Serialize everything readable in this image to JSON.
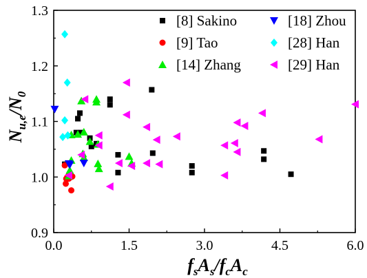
{
  "chart_data": {
    "type": "scatter",
    "xlim": [
      0,
      6
    ],
    "ylim": [
      0.9,
      1.3
    ],
    "x_ticks": [
      "0.0",
      "1.5",
      "3.0",
      "4.5",
      "6.0"
    ],
    "x_tick_values": [
      0,
      1.5,
      3,
      4.5,
      6
    ],
    "y_ticks": [
      "0.9",
      "1.0",
      "1.1",
      "1.2",
      "1.3"
    ],
    "y_tick_values": [
      0.9,
      1.0,
      1.1,
      1.2,
      1.3
    ],
    "xlabel": {
      "parts": [
        "f",
        "s",
        "A",
        "s",
        "/f",
        "c",
        "A",
        "c"
      ]
    },
    "ylabel": {
      "parts": [
        "N",
        "u,e",
        "/N",
        "0"
      ]
    },
    "legend_placement": "top-right, two columns",
    "grid": false,
    "series": [
      {
        "name": "[8] Sakino",
        "marker": "square",
        "color": "#000000",
        "points": [
          [
            0.22,
            1.023
          ],
          [
            0.45,
            1.08
          ],
          [
            0.48,
            1.105
          ],
          [
            0.52,
            1.115
          ],
          [
            0.55,
            1.08
          ],
          [
            0.72,
            1.07
          ],
          [
            0.75,
            1.055
          ],
          [
            0.85,
            1.06
          ],
          [
            1.12,
            1.14
          ],
          [
            1.12,
            1.13
          ],
          [
            1.28,
            1.04
          ],
          [
            1.28,
            1.008
          ],
          [
            1.95,
            1.157
          ],
          [
            1.97,
            1.043
          ],
          [
            2.75,
            1.02
          ],
          [
            2.75,
            1.008
          ],
          [
            4.18,
            1.047
          ],
          [
            4.18,
            1.032
          ],
          [
            4.72,
            1.005
          ]
        ]
      },
      {
        "name": "[9] Tao",
        "marker": "circle",
        "color": "#ff0000",
        "points": [
          [
            0.22,
            1.021
          ],
          [
            0.24,
            0.988
          ],
          [
            0.25,
            0.997
          ],
          [
            0.27,
            1.0
          ],
          [
            0.3,
            1.003
          ],
          [
            0.3,
            0.997
          ],
          [
            0.33,
            1.005
          ],
          [
            0.35,
            0.976
          ],
          [
            0.35,
            1.0
          ],
          [
            0.37,
            1.001
          ]
        ]
      },
      {
        "name": "[14] Zhang",
        "marker": "triangle-up",
        "color": "#00ee00",
        "points": [
          [
            0.3,
            1.002
          ],
          [
            0.32,
            1.012
          ],
          [
            0.35,
            1.03
          ],
          [
            0.35,
            1.076
          ],
          [
            0.48,
            1.077
          ],
          [
            0.55,
            1.137
          ],
          [
            0.58,
            1.042
          ],
          [
            0.6,
            1.035
          ],
          [
            0.6,
            1.081
          ],
          [
            0.72,
            1.064
          ],
          [
            0.85,
            1.14
          ],
          [
            0.85,
            1.135
          ],
          [
            0.88,
            1.059
          ],
          [
            0.88,
            1.024
          ],
          [
            0.9,
            1.015
          ],
          [
            1.5,
            1.037
          ],
          [
            1.55,
            1.025
          ]
        ]
      },
      {
        "name": "[18] Zhou",
        "marker": "triangle-down",
        "color": "#0000ff",
        "points": [
          [
            0.02,
            1.122
          ],
          [
            0.3,
            1.024
          ],
          [
            0.32,
            1.022
          ],
          [
            0.6,
            1.025
          ]
        ]
      },
      {
        "name": "[28] Han",
        "marker": "diamond",
        "color": "#00ffff",
        "points": [
          [
            0.22,
            1.257
          ],
          [
            0.27,
            1.17
          ],
          [
            0.22,
            1.102
          ],
          [
            0.28,
            1.075
          ],
          [
            0.18,
            1.072
          ]
        ]
      },
      {
        "name": "[29] Han",
        "marker": "triangle-left",
        "color": "#ff00ff",
        "points": [
          [
            0.3,
            1.003
          ],
          [
            0.55,
            1.04
          ],
          [
            0.62,
            1.14
          ],
          [
            0.9,
            1.075
          ],
          [
            0.9,
            1.057
          ],
          [
            1.12,
            0.983
          ],
          [
            1.3,
            1.025
          ],
          [
            1.45,
            1.17
          ],
          [
            1.45,
            1.112
          ],
          [
            1.55,
            1.02
          ],
          [
            1.85,
            1.09
          ],
          [
            1.85,
            1.025
          ],
          [
            2.05,
            1.067
          ],
          [
            2.1,
            1.023
          ],
          [
            2.45,
            1.073
          ],
          [
            3.4,
            1.057
          ],
          [
            3.4,
            1.003
          ],
          [
            3.6,
            1.061
          ],
          [
            3.65,
            1.098
          ],
          [
            3.65,
            1.045
          ],
          [
            3.8,
            1.092
          ],
          [
            4.15,
            1.115
          ],
          [
            5.28,
            1.068
          ],
          [
            6.0,
            1.131
          ]
        ]
      }
    ]
  }
}
